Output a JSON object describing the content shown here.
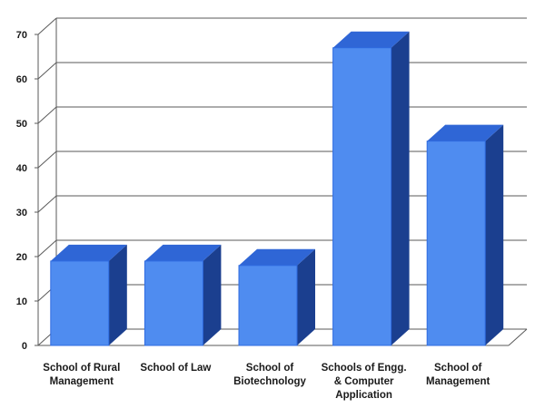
{
  "chart_data": {
    "type": "bar",
    "style": "3d-column",
    "categories": [
      [
        "School of Rural",
        "Management"
      ],
      [
        "School of Law"
      ],
      [
        "School of",
        "Biotechnology"
      ],
      [
        "Schools of Engg.",
        "& Computer",
        "Application"
      ],
      [
        "School of",
        "Management"
      ]
    ],
    "values": [
      19,
      19,
      18,
      67,
      46
    ],
    "ylim": [
      0,
      70
    ],
    "yticks": [
      0,
      10,
      20,
      30,
      40,
      50,
      60,
      70
    ],
    "grid": true,
    "legend": "none",
    "colors": {
      "front": "#4f8cf0",
      "front_edge": "#2f6be0",
      "top": "#2f66d6",
      "side": "#1b3f8f",
      "grid": "#5a5a5a",
      "floor": "#ffffff"
    }
  }
}
